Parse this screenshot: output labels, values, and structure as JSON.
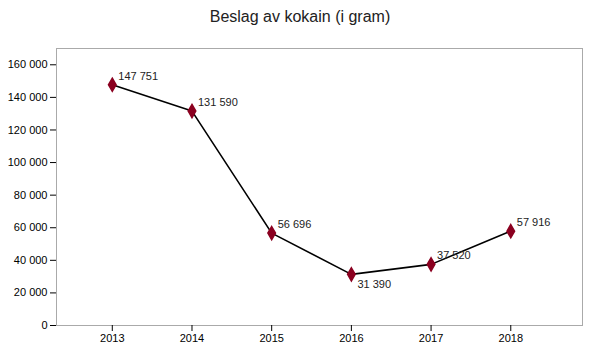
{
  "chart_data": {
    "type": "line",
    "title": "Beslag av kokain (i gram)",
    "x": [
      2013,
      2014,
      2015,
      2016,
      2017,
      2018
    ],
    "values": [
      147751,
      131590,
      56696,
      31390,
      37520,
      57916
    ],
    "value_labels": [
      "147 751",
      "131 590",
      "56 696",
      "31 390",
      "37 520",
      "57 916"
    ],
    "data_labels": true,
    "color": "#8B0020",
    "marker": "diamond",
    "xlim": [
      2012.3,
      2018.9
    ],
    "xticks": [
      2013,
      2014,
      2015,
      2016,
      2017,
      2018
    ],
    "ylim": [
      0,
      170000
    ],
    "yticks": [
      0,
      {
        "value": 20000,
        "label": "20 000"
      },
      {
        "value": 40000,
        "label": "40 000"
      },
      {
        "value": 60000,
        "label": "60 000"
      },
      {
        "value": 80000,
        "label": "80 000"
      },
      {
        "value": 100000,
        "label": "100 000"
      },
      {
        "value": 120000,
        "label": "120 000"
      },
      {
        "value": 140000,
        "label": "140 000"
      },
      {
        "value": 160000,
        "label": "160 000"
      }
    ],
    "grid": false
  }
}
